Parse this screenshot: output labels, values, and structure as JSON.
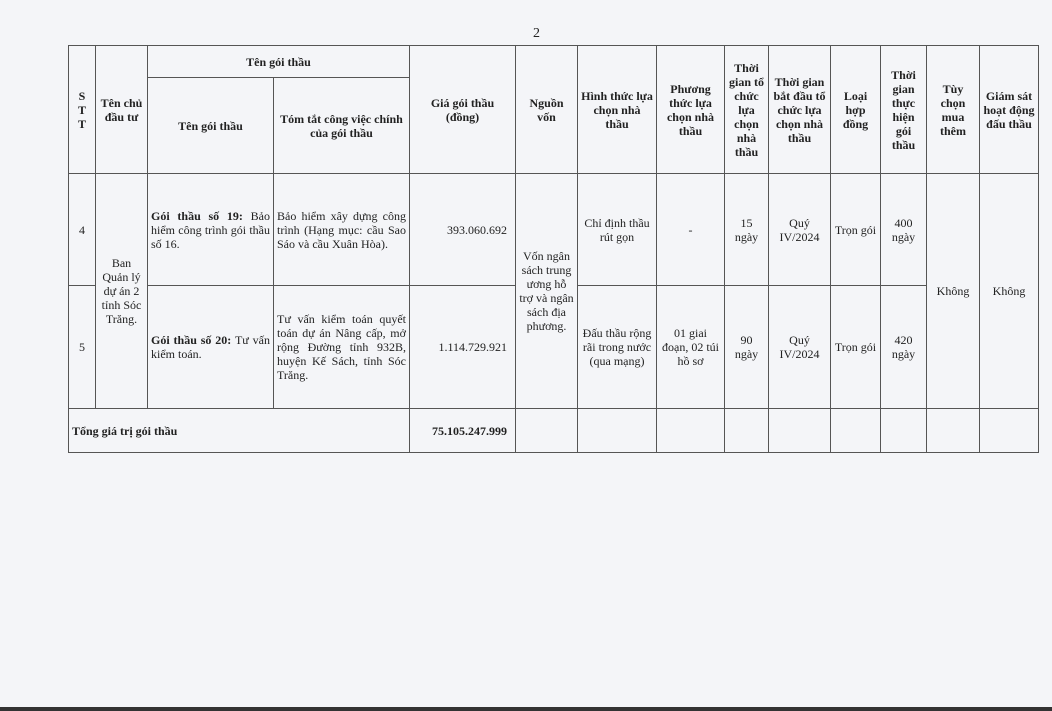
{
  "page_number": "2",
  "header": {
    "stt": "S T T",
    "owner": "Tên chủ đầu tư",
    "package_group": "Tên gói thầu",
    "package_name": "Tên gói thầu",
    "summary": "Tóm tắt công việc chính của gói thầu",
    "price": "Giá gói thầu (đồng)",
    "source": "Nguồn vốn",
    "selection_form": "Hình thức lựa chọn nhà thầu",
    "selection_method": "Phương thức lựa chọn nhà thầu",
    "selection_time": "Thời gian tổ chức lựa chọn nhà thầu",
    "start_time": "Thời gian bắt đầu tổ chức lựa chọn nhà thầu",
    "contract_type": "Loại hợp đồng",
    "duration": "Thời gian thực hiện gói thầu",
    "option": "Tùy chọn mua thêm",
    "monitoring": "Giám sát hoạt động đấu thầu"
  },
  "shared": {
    "owner": "Ban Quản lý dự án 2 tỉnh Sóc Trăng.",
    "source": "Vốn ngân sách trung ương hỗ trợ và ngân sách địa phương.",
    "option": "Không",
    "monitoring": "Không"
  },
  "rows": [
    {
      "stt": "4",
      "name_bold": "Gói thầu số 19:",
      "name_rest": " Bảo hiểm công trình gói thầu số 16.",
      "summary": "Bảo hiểm xây dựng công trình (Hạng mục: cầu Sao Sáo và cầu Xuân Hòa).",
      "price": "393.060.692",
      "selection_form": "Chỉ định thầu rút gọn",
      "selection_method": "-",
      "selection_time": "15 ngày",
      "start_time": "Quý IV/2024",
      "contract_type": "Trọn gói",
      "duration": "400 ngày"
    },
    {
      "stt": "5",
      "name_bold": "Gói thầu số 20:",
      "name_rest": " Tư vấn kiểm toán.",
      "summary": "Tư vấn kiểm toán quyết toán dự án Nâng cấp, mở rộng Đường tỉnh 932B, huyện Kế Sách, tỉnh Sóc Trăng.",
      "price": "1.114.729.921",
      "selection_form": "Đấu thầu rộng rãi trong nước (qua mạng)",
      "selection_method": "01 giai đoạn, 02 túi hồ sơ",
      "selection_time": "90 ngày",
      "start_time": "Quý IV/2024",
      "contract_type": "Trọn gói",
      "duration": "420 ngày"
    }
  ],
  "total": {
    "label": "Tổng giá trị gói thầu",
    "value": "75.105.247.999"
  }
}
